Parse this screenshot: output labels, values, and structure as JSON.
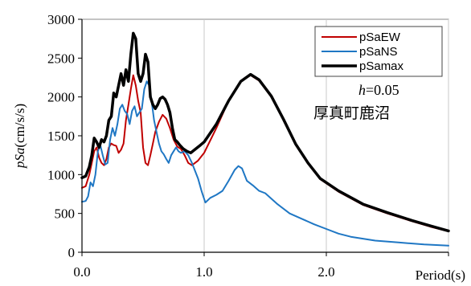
{
  "chart_data": {
    "type": "line",
    "title": "",
    "xlabel": "Period(s)",
    "ylabel_italic": "pSa",
    "ylabel_unit": "(cm/s/s)",
    "xlim": [
      0,
      3
    ],
    "ylim": [
      0,
      3000
    ],
    "x_ticks": [
      0,
      1,
      2,
      3
    ],
    "x_tick_labels": [
      "0.0",
      "1.0",
      "2.0",
      ""
    ],
    "y_ticks": [
      0,
      500,
      1000,
      1500,
      2000,
      2500,
      3000
    ],
    "y_tick_labels": [
      "0",
      "500",
      "1000",
      "1500",
      "2000",
      "2500",
      "3000"
    ],
    "grid": {
      "vertical": true,
      "horizontal": false
    },
    "legend_position": "top-right",
    "annotations": {
      "damping_italic": "h",
      "damping_value": "=0.05",
      "station": "厚真町鹿沼"
    },
    "series": [
      {
        "name": "pSaEW",
        "color": "#c00000",
        "width": 2.0,
        "points": [
          [
            0.0,
            830
          ],
          [
            0.03,
            850
          ],
          [
            0.06,
            1000
          ],
          [
            0.08,
            1150
          ],
          [
            0.1,
            1300
          ],
          [
            0.12,
            1350
          ],
          [
            0.14,
            1220
          ],
          [
            0.16,
            1150
          ],
          [
            0.18,
            1120
          ],
          [
            0.2,
            1200
          ],
          [
            0.22,
            1350
          ],
          [
            0.24,
            1400
          ],
          [
            0.26,
            1380
          ],
          [
            0.28,
            1370
          ],
          [
            0.3,
            1280
          ],
          [
            0.32,
            1320
          ],
          [
            0.34,
            1400
          ],
          [
            0.36,
            1700
          ],
          [
            0.38,
            1900
          ],
          [
            0.4,
            2100
          ],
          [
            0.42,
            2280
          ],
          [
            0.44,
            2150
          ],
          [
            0.46,
            1950
          ],
          [
            0.48,
            1800
          ],
          [
            0.5,
            1350
          ],
          [
            0.52,
            1150
          ],
          [
            0.54,
            1120
          ],
          [
            0.56,
            1250
          ],
          [
            0.58,
            1400
          ],
          [
            0.6,
            1550
          ],
          [
            0.63,
            1680
          ],
          [
            0.66,
            1770
          ],
          [
            0.69,
            1720
          ],
          [
            0.72,
            1600
          ],
          [
            0.75,
            1450
          ],
          [
            0.78,
            1360
          ],
          [
            0.81,
            1330
          ],
          [
            0.84,
            1250
          ],
          [
            0.87,
            1150
          ],
          [
            0.9,
            1120
          ],
          [
            0.95,
            1180
          ],
          [
            1.0,
            1280
          ],
          [
            1.1,
            1600
          ],
          [
            1.2,
            1950
          ],
          [
            1.3,
            2200
          ],
          [
            1.38,
            2280
          ],
          [
            1.45,
            2210
          ],
          [
            1.55,
            2000
          ],
          [
            1.65,
            1700
          ],
          [
            1.75,
            1380
          ],
          [
            1.85,
            1140
          ],
          [
            1.95,
            940
          ],
          [
            2.1,
            780
          ],
          [
            2.3,
            610
          ],
          [
            2.5,
            500
          ],
          [
            2.7,
            400
          ],
          [
            2.85,
            330
          ],
          [
            3.0,
            270
          ]
        ]
      },
      {
        "name": "pSaNS",
        "color": "#1f77c4",
        "width": 2.0,
        "points": [
          [
            0.0,
            650
          ],
          [
            0.03,
            660
          ],
          [
            0.05,
            720
          ],
          [
            0.07,
            900
          ],
          [
            0.09,
            850
          ],
          [
            0.11,
            1000
          ],
          [
            0.13,
            1300
          ],
          [
            0.15,
            1380
          ],
          [
            0.17,
            1250
          ],
          [
            0.19,
            1130
          ],
          [
            0.21,
            1150
          ],
          [
            0.23,
            1450
          ],
          [
            0.25,
            1600
          ],
          [
            0.27,
            1500
          ],
          [
            0.29,
            1650
          ],
          [
            0.31,
            1850
          ],
          [
            0.33,
            1900
          ],
          [
            0.35,
            1820
          ],
          [
            0.37,
            1780
          ],
          [
            0.39,
            1650
          ],
          [
            0.41,
            1820
          ],
          [
            0.43,
            1880
          ],
          [
            0.45,
            1750
          ],
          [
            0.47,
            1800
          ],
          [
            0.49,
            1850
          ],
          [
            0.51,
            2100
          ],
          [
            0.53,
            2200
          ],
          [
            0.55,
            2150
          ],
          [
            0.57,
            1950
          ],
          [
            0.59,
            1700
          ],
          [
            0.61,
            1550
          ],
          [
            0.63,
            1400
          ],
          [
            0.65,
            1300
          ],
          [
            0.67,
            1260
          ],
          [
            0.69,
            1200
          ],
          [
            0.71,
            1150
          ],
          [
            0.73,
            1250
          ],
          [
            0.75,
            1300
          ],
          [
            0.77,
            1350
          ],
          [
            0.79,
            1300
          ],
          [
            0.81,
            1280
          ],
          [
            0.84,
            1300
          ],
          [
            0.87,
            1250
          ],
          [
            0.9,
            1150
          ],
          [
            0.95,
            950
          ],
          [
            0.98,
            780
          ],
          [
            1.01,
            640
          ],
          [
            1.05,
            700
          ],
          [
            1.1,
            740
          ],
          [
            1.15,
            790
          ],
          [
            1.2,
            920
          ],
          [
            1.25,
            1060
          ],
          [
            1.28,
            1110
          ],
          [
            1.31,
            1080
          ],
          [
            1.35,
            920
          ],
          [
            1.4,
            860
          ],
          [
            1.45,
            790
          ],
          [
            1.5,
            760
          ],
          [
            1.6,
            620
          ],
          [
            1.7,
            500
          ],
          [
            1.8,
            430
          ],
          [
            1.9,
            360
          ],
          [
            2.0,
            300
          ],
          [
            2.1,
            240
          ],
          [
            2.2,
            200
          ],
          [
            2.4,
            150
          ],
          [
            2.6,
            125
          ],
          [
            2.8,
            100
          ],
          [
            3.0,
            85
          ]
        ]
      },
      {
        "name": "pSamax",
        "color": "#000000",
        "width": 3.5,
        "points": [
          [
            0.0,
            960
          ],
          [
            0.03,
            980
          ],
          [
            0.06,
            1100
          ],
          [
            0.08,
            1250
          ],
          [
            0.1,
            1470
          ],
          [
            0.12,
            1420
          ],
          [
            0.14,
            1350
          ],
          [
            0.16,
            1450
          ],
          [
            0.18,
            1420
          ],
          [
            0.2,
            1500
          ],
          [
            0.22,
            1700
          ],
          [
            0.24,
            1750
          ],
          [
            0.26,
            2050
          ],
          [
            0.28,
            2000
          ],
          [
            0.3,
            2150
          ],
          [
            0.32,
            2300
          ],
          [
            0.34,
            2150
          ],
          [
            0.36,
            2350
          ],
          [
            0.38,
            2200
          ],
          [
            0.4,
            2550
          ],
          [
            0.42,
            2820
          ],
          [
            0.44,
            2750
          ],
          [
            0.46,
            2300
          ],
          [
            0.48,
            2200
          ],
          [
            0.5,
            2300
          ],
          [
            0.52,
            2550
          ],
          [
            0.54,
            2450
          ],
          [
            0.56,
            2000
          ],
          [
            0.58,
            1900
          ],
          [
            0.6,
            1850
          ],
          [
            0.62,
            1900
          ],
          [
            0.64,
            1980
          ],
          [
            0.66,
            2000
          ],
          [
            0.68,
            1970
          ],
          [
            0.7,
            1900
          ],
          [
            0.72,
            1800
          ],
          [
            0.74,
            1600
          ],
          [
            0.76,
            1450
          ],
          [
            0.78,
            1420
          ],
          [
            0.8,
            1380
          ],
          [
            0.83,
            1330
          ],
          [
            0.86,
            1300
          ],
          [
            0.89,
            1280
          ],
          [
            0.93,
            1330
          ],
          [
            0.97,
            1380
          ],
          [
            1.0,
            1420
          ],
          [
            1.1,
            1650
          ],
          [
            1.2,
            1950
          ],
          [
            1.3,
            2200
          ],
          [
            1.38,
            2290
          ],
          [
            1.45,
            2220
          ],
          [
            1.55,
            2010
          ],
          [
            1.65,
            1710
          ],
          [
            1.75,
            1390
          ],
          [
            1.85,
            1150
          ],
          [
            1.95,
            950
          ],
          [
            2.1,
            790
          ],
          [
            2.3,
            620
          ],
          [
            2.5,
            510
          ],
          [
            2.7,
            410
          ],
          [
            2.85,
            340
          ],
          [
            3.0,
            275
          ]
        ]
      }
    ]
  }
}
